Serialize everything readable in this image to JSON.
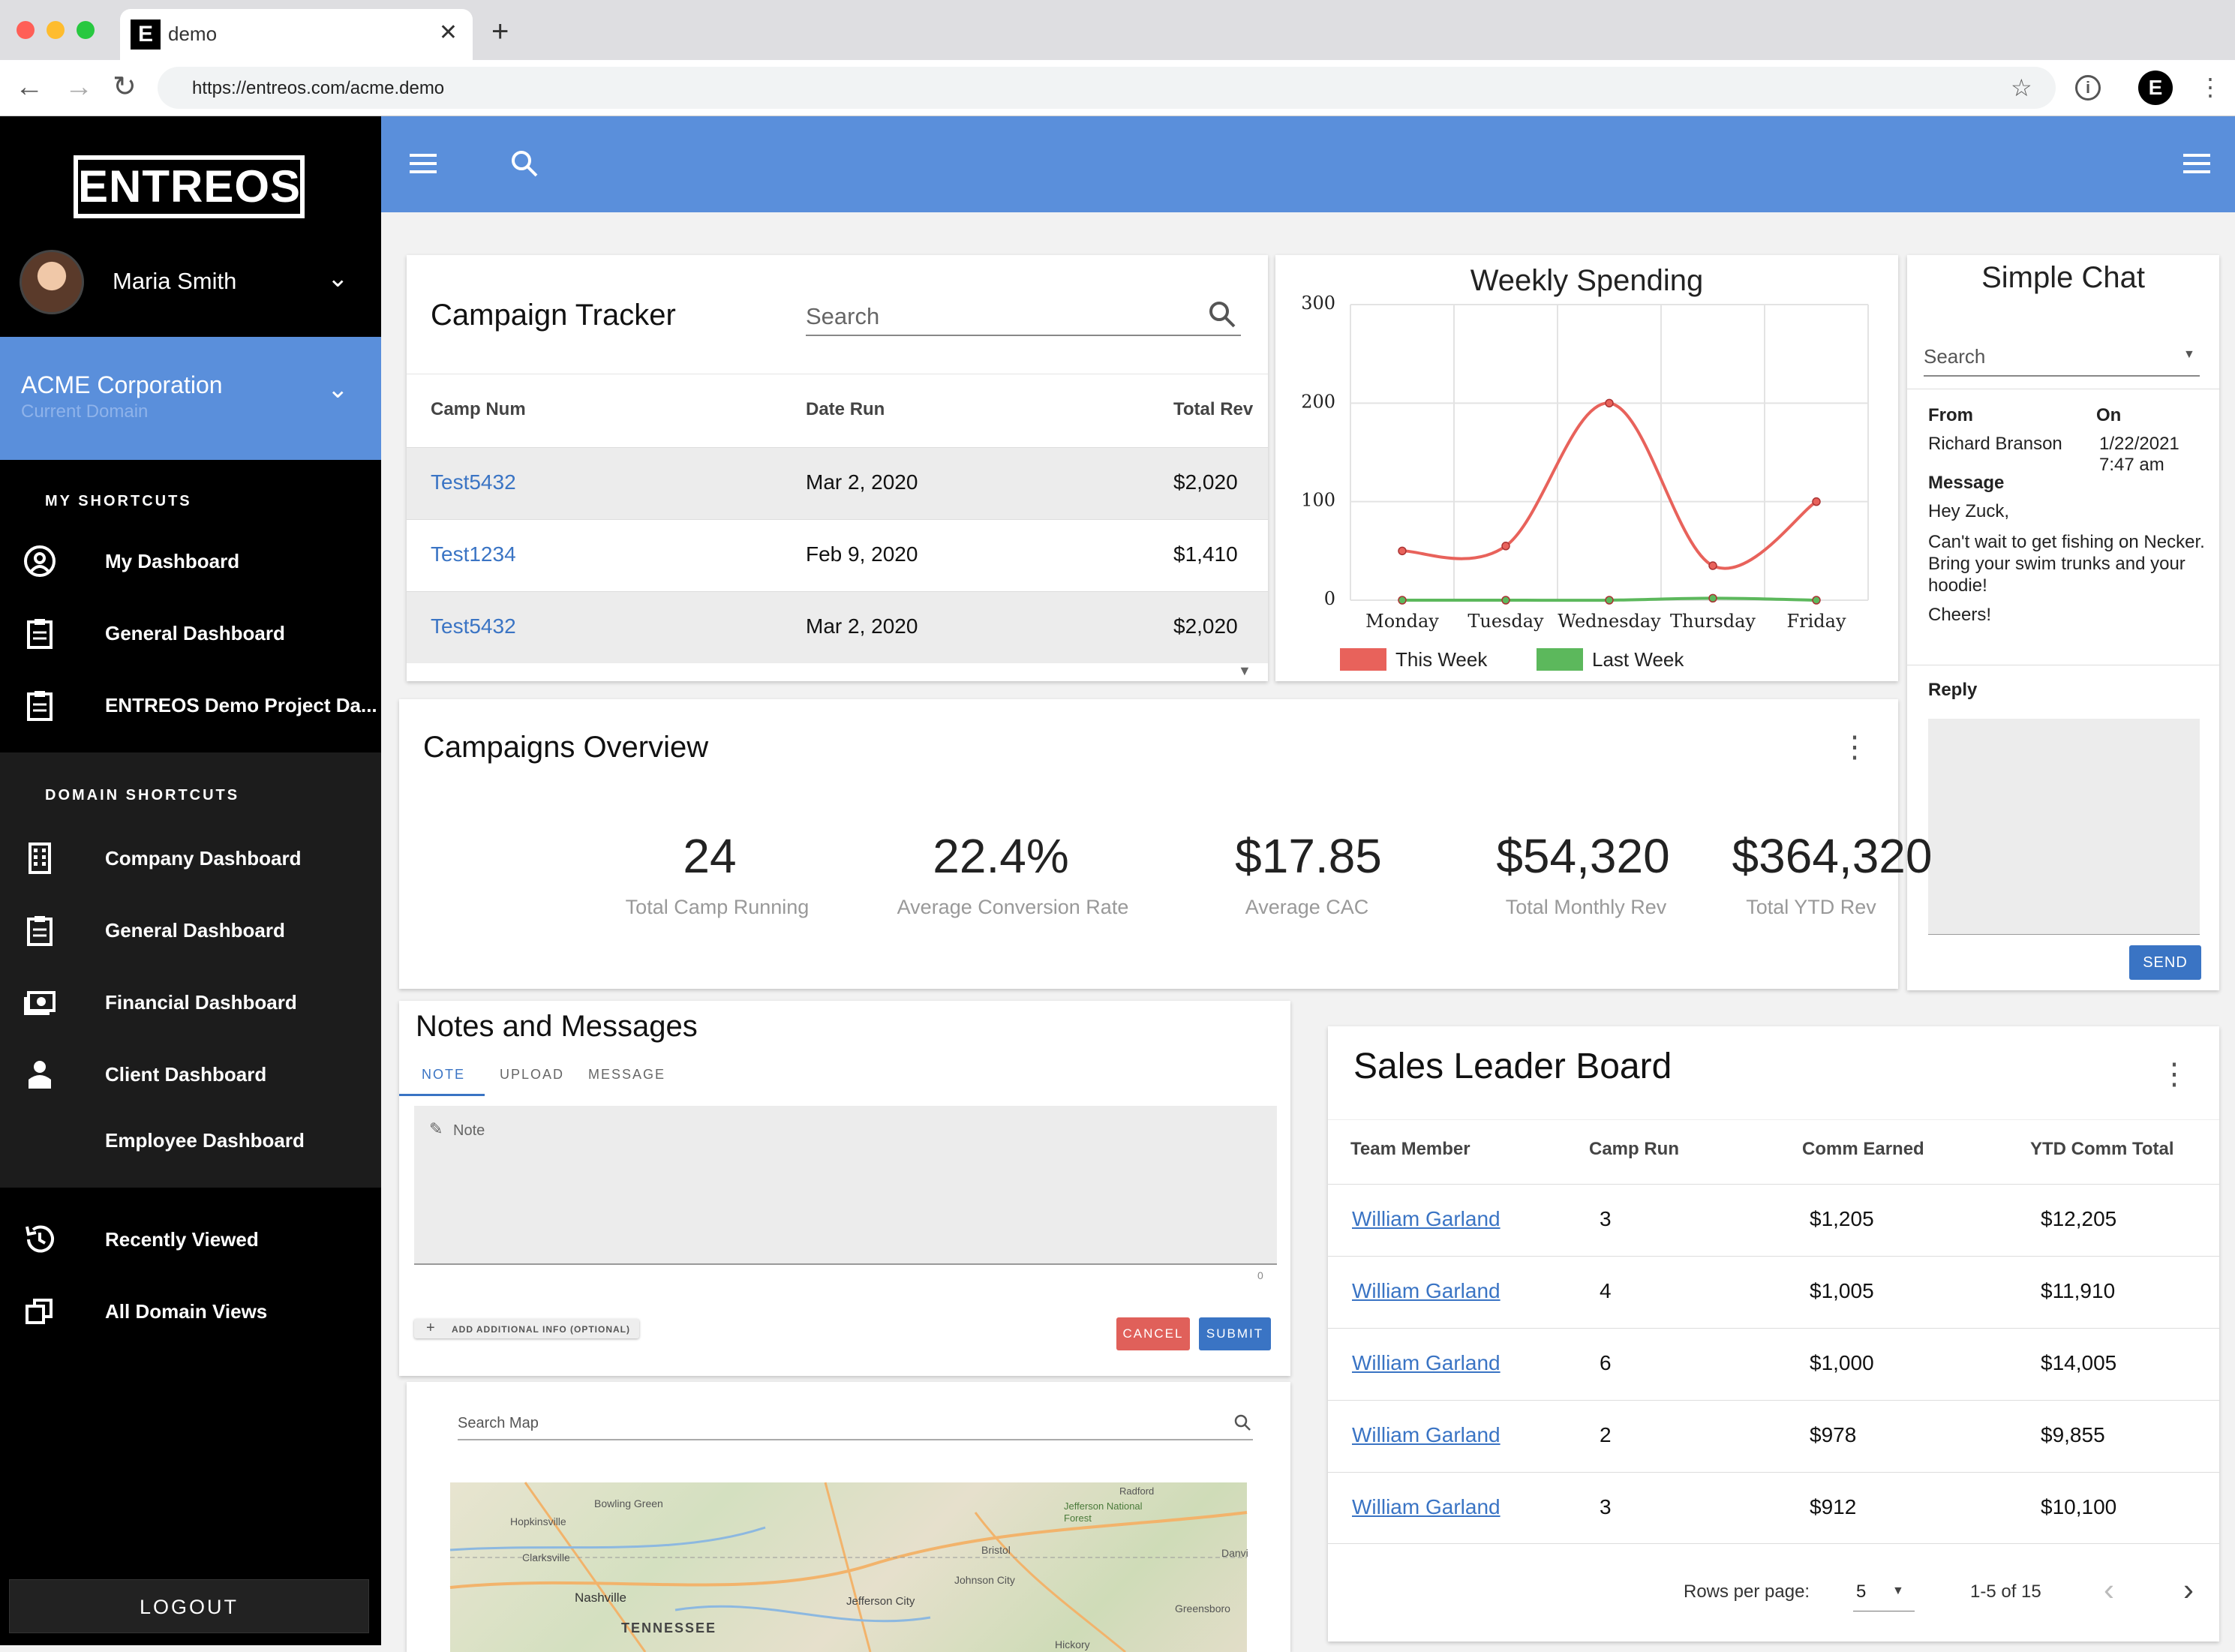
{
  "browser": {
    "tab_title": "demo",
    "favicon": "E",
    "url": "https://entreos.com/acme.demo",
    "profile": "E"
  },
  "sidebar": {
    "logo": "ENTREOS",
    "user_name": "Maria Smith",
    "domain_name": "ACME Corporation",
    "domain_sub": "Current Domain",
    "my_shortcuts_heading": "MY SHORTCUTS",
    "my_shortcuts": [
      {
        "label": "My Dashboard",
        "icon": "user-circle-icon"
      },
      {
        "label": "General Dashboard",
        "icon": "clipboard-icon"
      },
      {
        "label": "ENTREOS Demo Project Da...",
        "icon": "clipboard-icon"
      }
    ],
    "domain_shortcuts_heading": "DOMAIN SHORTCUTS",
    "domain_shortcuts": [
      {
        "label": "Company Dashboard",
        "icon": "building-icon"
      },
      {
        "label": "General Dashboard",
        "icon": "clipboard-icon"
      },
      {
        "label": "Financial Dashboard",
        "icon": "money-icon"
      },
      {
        "label": "Client Dashboard",
        "icon": "person-icon"
      },
      {
        "label": "Employee Dashboard",
        "icon": ""
      }
    ],
    "recent": {
      "label": "Recently Viewed",
      "icon": "history-icon"
    },
    "all_views": {
      "label": "All Domain Views",
      "icon": "windows-icon"
    },
    "logout": "LOGOUT"
  },
  "campaign_tracker": {
    "title": "Campaign Tracker",
    "search_placeholder": "Search",
    "headers": [
      "Camp Num",
      "Date Run",
      "Total Rev"
    ],
    "rows": [
      {
        "camp": "Test5432",
        "date": "Mar 2, 2020",
        "rev": "$2,020"
      },
      {
        "camp": "Test1234",
        "date": "Feb 9, 2020",
        "rev": "$1,410"
      },
      {
        "camp": "Test5432",
        "date": "Mar 2, 2020",
        "rev": "$2,020"
      }
    ]
  },
  "chart_data": {
    "type": "line",
    "title": "Weekly Spending",
    "categories": [
      "Monday",
      "Tuesday",
      "Wednesday",
      "Thursday",
      "Friday"
    ],
    "series": [
      {
        "name": "This Week",
        "color": "#e8625b",
        "values": [
          50,
          55,
          200,
          35,
          100
        ]
      },
      {
        "name": "Last Week",
        "color": "#5cb85c",
        "values": [
          0,
          0,
          0,
          2,
          0
        ]
      }
    ],
    "y_ticks": [
      "300",
      "200",
      "100",
      "0"
    ],
    "ylim": [
      0,
      300
    ],
    "grid": true,
    "legend": "bottom"
  },
  "chat": {
    "title": "Simple Chat",
    "search_placeholder": "Search",
    "from_label": "From",
    "from": "Richard Branson",
    "on_label": "On",
    "date": "1/22/2021",
    "time": "7:47 am",
    "message_label": "Message",
    "message_lines": [
      "Hey Zuck,",
      "Can't wait to get fishing on Necker. Bring your swim trunks and your hoodie!",
      "Cheers!"
    ],
    "reply_label": "Reply",
    "send": "SEND"
  },
  "overview": {
    "title": "Campaigns Overview",
    "stats": [
      {
        "value": "24",
        "label": "Total Camp Running"
      },
      {
        "value": "22.4%",
        "label": "Average Conversion Rate"
      },
      {
        "value": "$17.85",
        "label": "Average CAC"
      },
      {
        "value": "$54,320",
        "label": "Total Monthly Rev"
      },
      {
        "value": "$364,320",
        "label": "Total YTD Rev"
      }
    ]
  },
  "notes": {
    "title": "Notes and Messages",
    "tabs": [
      "NOTE",
      "UPLOAD",
      "MESSAGE"
    ],
    "note_placeholder": "Note",
    "counter": "0",
    "add_info": "ADD ADDITIONAL INFO (OPTIONAL)",
    "cancel": "CANCEL",
    "submit": "SUBMIT"
  },
  "map": {
    "search_placeholder": "Search Map",
    "labels": [
      "Bowling Green",
      "Hopkinsville",
      "Clarksville",
      "Nashville",
      "TENNESSEE",
      "Jefferson City",
      "Johnson City",
      "Bristol",
      "Radford",
      "Jefferson National Forest",
      "Greensboro",
      "Danvi",
      "Hickory"
    ]
  },
  "leaderboard": {
    "title": "Sales Leader Board",
    "headers": [
      "Team Member",
      "Camp Run",
      "Comm Earned",
      "YTD Comm Total"
    ],
    "rows": [
      {
        "name": "William Garland",
        "camp": "3",
        "comm": "$1,205",
        "ytd": "$12,205"
      },
      {
        "name": "William Garland",
        "camp": "4",
        "comm": "$1,005",
        "ytd": "$11,910"
      },
      {
        "name": "William Garland",
        "camp": "6",
        "comm": "$1,000",
        "ytd": "$14,005"
      },
      {
        "name": "William Garland",
        "camp": "2",
        "comm": "$978",
        "ytd": "$9,855"
      },
      {
        "name": "William Garland",
        "camp": "3",
        "comm": "$912",
        "ytd": "$10,100"
      }
    ],
    "rows_per_page_label": "Rows per page:",
    "rows_per_page": "5",
    "range": "1-5 of 15"
  }
}
